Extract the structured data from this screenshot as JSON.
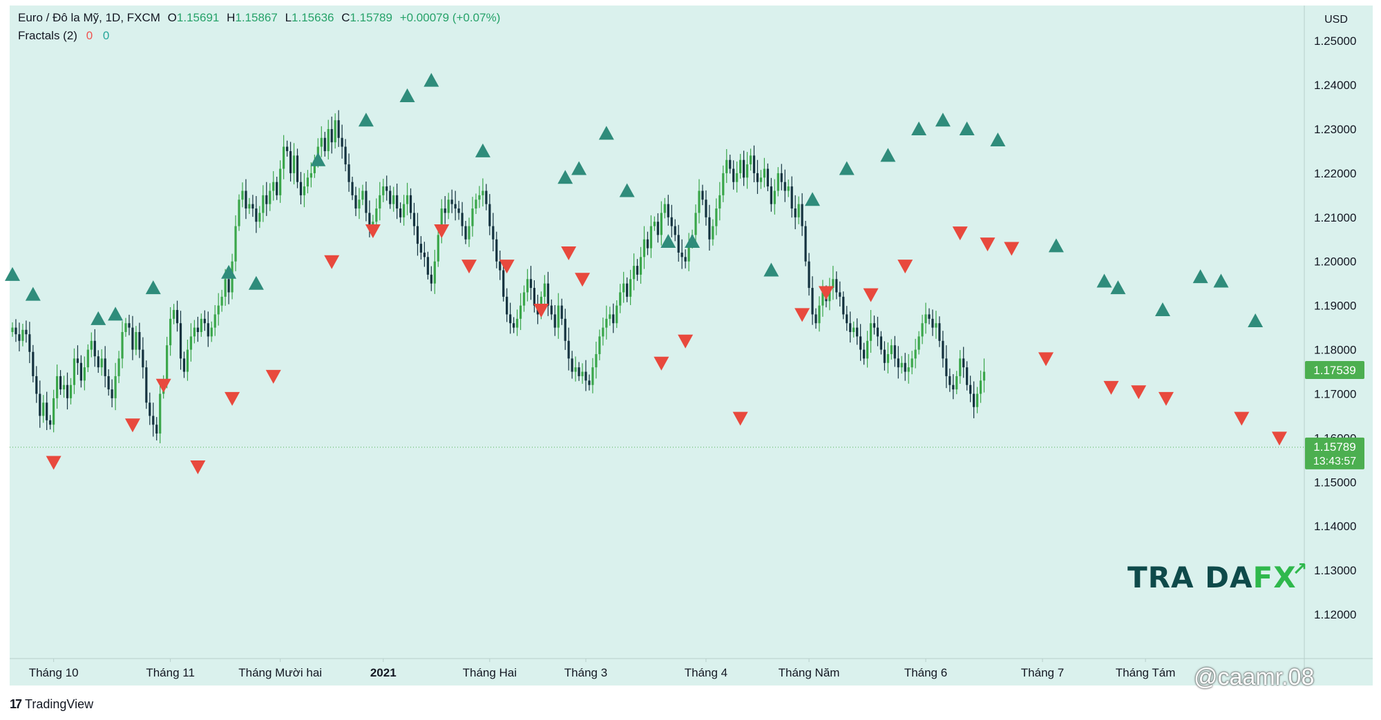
{
  "header": {
    "symbol": "Euro / Đô la Mỹ, 1D, FXCM",
    "o_label": "O",
    "o_value": "1.15691",
    "h_label": "H",
    "h_value": "1.15867",
    "l_label": "L",
    "l_value": "1.15636",
    "c_label": "C",
    "c_value": "1.15789",
    "change": "+0.00079 (+0.07%)",
    "indicator": "Fractals (2)",
    "ind_val1": "0",
    "ind_val2": "0"
  },
  "colors": {
    "background": "#daf1ed",
    "candle_up": "#3aa64a",
    "candle_down": "#14323f",
    "fractal_up": "#2f8c7b",
    "fractal_down": "#e8493d",
    "price_tag": "#4caf50"
  },
  "footer": {
    "brand": "TradingView",
    "logo_text": "17"
  },
  "watermark": {
    "tra": "TRA",
    "da": "DA",
    "fx": "FX",
    "arrow": "↗"
  },
  "credit": "@caamr.08",
  "chart_data": {
    "type": "candlestick",
    "currency_label": "USD",
    "y_ticks": [
      "1.25000",
      "1.24000",
      "1.23000",
      "1.22000",
      "1.21000",
      "1.20000",
      "1.19000",
      "1.18000",
      "1.17000",
      "1.16000",
      "1.15000",
      "1.14000",
      "1.13000",
      "1.12000"
    ],
    "ylim": [
      1.11,
      1.258
    ],
    "x_ticks": [
      {
        "label": "Tháng 10",
        "bold": false
      },
      {
        "label": "Tháng 11",
        "bold": false
      },
      {
        "label": "Tháng Mười hai",
        "bold": false
      },
      {
        "label": "2021",
        "bold": true
      },
      {
        "label": "Tháng Hai",
        "bold": false
      },
      {
        "label": "Tháng 3",
        "bold": false
      },
      {
        "label": "Tháng 4",
        "bold": false
      },
      {
        "label": "Tháng Năm",
        "bold": false
      },
      {
        "label": "Tháng 6",
        "bold": false
      },
      {
        "label": "Tháng 7",
        "bold": false
      },
      {
        "label": "Tháng Tám",
        "bold": false
      }
    ],
    "tick_index": [
      12,
      46,
      78,
      108,
      139,
      167,
      202,
      232,
      266,
      300,
      330
    ],
    "price_tags": [
      {
        "price": 1.17539,
        "label": "1.17539"
      },
      {
        "price": 1.15789,
        "label": "1.15789",
        "sub": "13:43:57"
      }
    ],
    "current_price_line": 1.15789,
    "closes": [
      1.185,
      1.1835,
      1.182,
      1.1845,
      1.1835,
      1.1795,
      1.174,
      1.17,
      1.165,
      1.168,
      1.164,
      1.163,
      1.169,
      1.174,
      1.171,
      1.172,
      1.169,
      1.172,
      1.178,
      1.177,
      1.173,
      1.176,
      1.18,
      1.182,
      1.1785,
      1.176,
      1.178,
      1.174,
      1.171,
      1.169,
      1.174,
      1.178,
      1.184,
      1.186,
      1.185,
      1.18,
      1.184,
      1.18,
      1.176,
      1.168,
      1.165,
      1.163,
      1.161,
      1.17,
      1.173,
      1.181,
      1.187,
      1.189,
      1.186,
      1.178,
      1.175,
      1.18,
      1.183,
      1.185,
      1.184,
      1.187,
      1.186,
      1.183,
      1.185,
      1.188,
      1.19,
      1.192,
      1.196,
      1.193,
      1.2,
      1.208,
      1.214,
      1.216,
      1.212,
      1.213,
      1.212,
      1.209,
      1.211,
      1.215,
      1.213,
      1.216,
      1.218,
      1.215,
      1.221,
      1.226,
      1.225,
      1.22,
      1.224,
      1.218,
      1.215,
      1.217,
      1.219,
      1.22,
      1.223,
      1.226,
      1.228,
      1.225,
      1.23,
      1.227,
      1.232,
      1.228,
      1.226,
      1.222,
      1.218,
      1.215,
      1.212,
      1.214,
      1.216,
      1.211,
      1.208,
      1.209,
      1.212,
      1.215,
      1.217,
      1.216,
      1.213,
      1.215,
      1.212,
      1.21,
      1.213,
      1.215,
      1.211,
      1.208,
      1.204,
      1.202,
      1.201,
      1.197,
      1.195,
      1.2,
      1.206,
      1.212,
      1.211,
      1.214,
      1.213,
      1.212,
      1.211,
      1.208,
      1.205,
      1.208,
      1.212,
      1.214,
      1.215,
      1.216,
      1.213,
      1.208,
      1.205,
      1.2,
      1.198,
      1.192,
      1.188,
      1.186,
      1.185,
      1.187,
      1.19,
      1.193,
      1.196,
      1.194,
      1.19,
      1.188,
      1.192,
      1.195,
      1.19,
      1.188,
      1.185,
      1.19,
      1.187,
      1.182,
      1.178,
      1.175,
      1.176,
      1.174,
      1.175,
      1.173,
      1.172,
      1.176,
      1.179,
      1.183,
      1.185,
      1.187,
      1.188,
      1.186,
      1.19,
      1.193,
      1.195,
      1.192,
      1.196,
      1.199,
      1.197,
      1.201,
      1.205,
      1.203,
      1.208,
      1.209,
      1.206,
      1.211,
      1.213,
      1.21,
      1.208,
      1.206,
      1.202,
      1.201,
      1.2,
      1.204,
      1.206,
      1.211,
      1.216,
      1.214,
      1.21,
      1.205,
      1.208,
      1.212,
      1.215,
      1.22,
      1.223,
      1.221,
      1.218,
      1.22,
      1.223,
      1.219,
      1.222,
      1.224,
      1.22,
      1.218,
      1.219,
      1.221,
      1.217,
      1.213,
      1.216,
      1.22,
      1.218,
      1.216,
      1.217,
      1.212,
      1.21,
      1.213,
      1.208,
      1.2,
      1.194,
      1.188,
      1.186,
      1.19,
      1.193,
      1.191,
      1.194,
      1.196,
      1.193,
      1.192,
      1.188,
      1.186,
      1.184,
      1.185,
      1.183,
      1.18,
      1.178,
      1.182,
      1.186,
      1.185,
      1.183,
      1.18,
      1.177,
      1.179,
      1.181,
      1.178,
      1.176,
      1.177,
      1.175,
      1.176,
      1.178,
      1.18,
      1.183,
      1.186,
      1.188,
      1.187,
      1.185,
      1.186,
      1.182,
      1.178,
      1.174,
      1.172,
      1.171,
      1.174,
      1.178,
      1.176,
      1.172,
      1.17,
      1.167,
      1.17,
      1.173,
      1.175
    ],
    "fractals_up": [
      {
        "i": 0,
        "p": 1.197
      },
      {
        "i": 6,
        "p": 1.1925
      },
      {
        "i": 25,
        "p": 1.187
      },
      {
        "i": 30,
        "p": 1.188
      },
      {
        "i": 41,
        "p": 1.194
      },
      {
        "i": 63,
        "p": 1.1975
      },
      {
        "i": 71,
        "p": 1.195
      },
      {
        "i": 89,
        "p": 1.223
      },
      {
        "i": 103,
        "p": 1.232
      },
      {
        "i": 115,
        "p": 1.2375
      },
      {
        "i": 122,
        "p": 1.241
      },
      {
        "i": 137,
        "p": 1.225
      },
      {
        "i": 161,
        "p": 1.219
      },
      {
        "i": 165,
        "p": 1.221
      },
      {
        "i": 173,
        "p": 1.229
      },
      {
        "i": 179,
        "p": 1.216
      },
      {
        "i": 191,
        "p": 1.2045
      },
      {
        "i": 198,
        "p": 1.2045
      },
      {
        "i": 221,
        "p": 1.198
      },
      {
        "i": 233,
        "p": 1.214
      },
      {
        "i": 243,
        "p": 1.221
      },
      {
        "i": 255,
        "p": 1.224
      },
      {
        "i": 264,
        "p": 1.23
      },
      {
        "i": 271,
        "p": 1.232
      },
      {
        "i": 278,
        "p": 1.23
      },
      {
        "i": 287,
        "p": 1.2275
      },
      {
        "i": 304,
        "p": 1.2035
      },
      {
        "i": 318,
        "p": 1.1955
      },
      {
        "i": 322,
        "p": 1.194
      },
      {
        "i": 335,
        "p": 1.189
      },
      {
        "i": 346,
        "p": 1.1965
      },
      {
        "i": 352,
        "p": 1.1955
      },
      {
        "i": 362,
        "p": 1.1865
      }
    ],
    "fractals_down": [
      {
        "i": 12,
        "p": 1.1545
      },
      {
        "i": 35,
        "p": 1.163
      },
      {
        "i": 44,
        "p": 1.172
      },
      {
        "i": 54,
        "p": 1.1535
      },
      {
        "i": 64,
        "p": 1.169
      },
      {
        "i": 76,
        "p": 1.174
      },
      {
        "i": 93,
        "p": 1.2
      },
      {
        "i": 105,
        "p": 1.207
      },
      {
        "i": 125,
        "p": 1.207
      },
      {
        "i": 133,
        "p": 1.199
      },
      {
        "i": 144,
        "p": 1.199
      },
      {
        "i": 154,
        "p": 1.189
      },
      {
        "i": 162,
        "p": 1.202
      },
      {
        "i": 166,
        "p": 1.196
      },
      {
        "i": 189,
        "p": 1.177
      },
      {
        "i": 196,
        "p": 1.182
      },
      {
        "i": 212,
        "p": 1.1645
      },
      {
        "i": 230,
        "p": 1.188
      },
      {
        "i": 237,
        "p": 1.193
      },
      {
        "i": 250,
        "p": 1.1925
      },
      {
        "i": 260,
        "p": 1.199
      },
      {
        "i": 276,
        "p": 1.2065
      },
      {
        "i": 284,
        "p": 1.204
      },
      {
        "i": 291,
        "p": 1.203
      },
      {
        "i": 301,
        "p": 1.178
      },
      {
        "i": 320,
        "p": 1.1715
      },
      {
        "i": 328,
        "p": 1.1705
      },
      {
        "i": 336,
        "p": 1.169
      },
      {
        "i": 358,
        "p": 1.1645
      },
      {
        "i": 369,
        "p": 1.16
      }
    ]
  }
}
